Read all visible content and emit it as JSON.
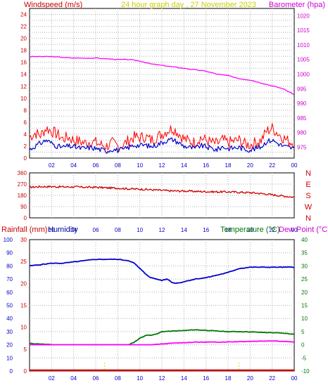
{
  "chart_data": [
    {
      "type": "line",
      "title": "24 hour graph day , 27 November 2023",
      "left_axis_label": "Windspeed (m/s)",
      "right_axis_label": "Barometer (hpa)",
      "x_ticks": [
        "02",
        "04",
        "06",
        "08",
        "10",
        "12",
        "14",
        "16",
        "18",
        "20",
        "22",
        "00"
      ],
      "y_left_ticks": [
        "0",
        "2",
        "4",
        "6",
        "8",
        "10",
        "12",
        "14",
        "16",
        "18",
        "20",
        "22",
        "24"
      ],
      "y_right_ticks": [
        "975",
        "980",
        "985",
        "990",
        "995",
        "1000",
        "1005",
        "1010",
        "1015",
        "1020"
      ],
      "y_left_range": [
        0,
        25
      ],
      "y_right_range": [
        971.25,
        1022.5
      ],
      "x_range": [
        0,
        24
      ],
      "series": [
        {
          "color": "#ff0000",
          "axis": "left",
          "x": [
            0,
            0.5,
            1,
            1.5,
            2,
            2.5,
            3,
            3.5,
            4,
            4.5,
            5,
            5.5,
            6,
            6.5,
            7,
            7.5,
            8,
            8.5,
            9,
            9.5,
            10,
            10.5,
            11,
            11.5,
            12,
            12.5,
            13,
            13.5,
            14,
            14.5,
            15,
            15.5,
            16,
            16.5,
            17,
            17.5,
            18,
            18.5,
            19,
            19.5,
            20,
            20.5,
            21,
            21.5,
            22,
            22.5,
            23,
            23.5,
            24
          ],
          "y": [
            3.5,
            4.2,
            3.8,
            5,
            4.5,
            4,
            3.2,
            3.5,
            3,
            2.8,
            2.5,
            2.8,
            2.6,
            2.2,
            2,
            2.5,
            2,
            2.2,
            3,
            3.5,
            3.4,
            3.6,
            3,
            3.5,
            4,
            4.6,
            5,
            4.2,
            3.2,
            2.8,
            2.6,
            3.4,
            3,
            2.6,
            2.4,
            3,
            2.6,
            2.8,
            3,
            2.4,
            2.2,
            2.6,
            3,
            4.5,
            5,
            4.2,
            3.4,
            2.8,
            2.6
          ]
        },
        {
          "color": "#0000cc",
          "axis": "left",
          "x": [
            0,
            0.5,
            1,
            1.5,
            2,
            2.5,
            3,
            3.5,
            4,
            4.5,
            5,
            5.5,
            6,
            6.5,
            7,
            7.5,
            8,
            8.5,
            9,
            9.5,
            10,
            10.5,
            11,
            11.5,
            12,
            12.5,
            13,
            13.5,
            14,
            14.5,
            15,
            15.5,
            16,
            16.5,
            17,
            17.5,
            18,
            18.5,
            19,
            19.5,
            20,
            20.5,
            21,
            21.5,
            22,
            22.5,
            23,
            23.5,
            24
          ],
          "y": [
            1.4,
            2,
            2.5,
            3,
            2.5,
            2,
            1.8,
            2,
            1.9,
            1.7,
            1.6,
            1.8,
            1.6,
            1.4,
            1.2,
            1.5,
            1.3,
            1.4,
            1.8,
            2.2,
            2.1,
            2.2,
            1.9,
            2.2,
            2.6,
            3,
            3.1,
            2.6,
            2,
            1.8,
            1.6,
            2.1,
            1.9,
            1.6,
            1.4,
            1.9,
            1.6,
            1.7,
            1.8,
            1.5,
            1.4,
            1.6,
            1.9,
            2.8,
            3,
            2.5,
            2,
            1.8,
            1.6
          ]
        },
        {
          "color": "#ff00ff",
          "axis": "right",
          "x": [
            0,
            2,
            4,
            6,
            8,
            9,
            10,
            11,
            12,
            13,
            14,
            15,
            16,
            17,
            18,
            19,
            20,
            21,
            22,
            23,
            24
          ],
          "y": [
            1006,
            1006,
            1005.5,
            1005.5,
            1005,
            1005,
            1004.5,
            1003.5,
            1003,
            1002.5,
            1002,
            1001.5,
            1001,
            1000,
            999.5,
            998.5,
            998,
            997,
            996,
            995,
            993
          ]
        }
      ]
    },
    {
      "type": "line",
      "x_ticks": [
        "02",
        "04",
        "06",
        "08",
        "10",
        "12",
        "14",
        "16",
        "18",
        "20",
        "22",
        "00"
      ],
      "y_left_ticks": [
        "0",
        "90",
        "180",
        "270",
        "360"
      ],
      "y_right_ticks": [
        "N",
        "E",
        "S",
        "W",
        "N"
      ],
      "y_range": [
        0,
        360
      ],
      "x_range": [
        0,
        24
      ],
      "series": [
        {
          "color": "#cc0000",
          "x": [
            0,
            1,
            2,
            3,
            4,
            5,
            6,
            7,
            8,
            9,
            10,
            11,
            12,
            13,
            14,
            15,
            16,
            17,
            18,
            19,
            20,
            21,
            22,
            23,
            24
          ],
          "y": [
            245,
            250,
            250,
            248,
            248,
            245,
            245,
            240,
            238,
            232,
            230,
            225,
            220,
            215,
            215,
            212,
            210,
            208,
            208,
            205,
            202,
            195,
            185,
            175,
            165
          ]
        }
      ]
    },
    {
      "type": "line",
      "rainfall_label": "Rainfall (mm)",
      "humidity_label": "Humidity",
      "temperature_label": "Temperature (°C)",
      "dewpoint_label": "Dew Point (°C)",
      "x_ticks": [
        "02",
        "04",
        "06",
        "08",
        "10",
        "12",
        "14",
        "16",
        "18",
        "20",
        "22",
        "00"
      ],
      "y_humidity_ticks": [
        "0",
        "10",
        "20",
        "30",
        "40",
        "50",
        "60",
        "70",
        "80",
        "90",
        "100"
      ],
      "y_rain_ticks": [
        "0",
        "5",
        "10",
        "15",
        "20",
        "25",
        "30"
      ],
      "y_temp_ticks": [
        "-10",
        "-5",
        "0",
        "5",
        "10",
        "15",
        "20",
        "25",
        "30",
        "35",
        "40"
      ],
      "humidity_range": [
        0,
        100
      ],
      "rain_range": [
        0,
        30
      ],
      "temp_range": [
        -10,
        40
      ],
      "x_range": [
        0,
        24
      ],
      "series": [
        {
          "color": "#0000cc",
          "axis": "humidity",
          "x": [
            0,
            1,
            2,
            3,
            4,
            5,
            6,
            7,
            8,
            9,
            9.5,
            10,
            10.5,
            11,
            11.5,
            12,
            12.5,
            13,
            13.5,
            14,
            15,
            16,
            17,
            18,
            19,
            20,
            21,
            22,
            23,
            24
          ],
          "y": [
            80,
            81,
            82,
            82,
            83,
            84,
            85,
            85,
            85,
            84,
            82,
            78,
            74,
            71,
            70,
            69,
            70,
            67,
            67,
            68,
            70,
            71,
            73,
            75,
            78,
            79,
            79,
            79,
            79,
            79
          ]
        },
        {
          "color": "#007700",
          "axis": "temp",
          "x": [
            0,
            1,
            2,
            3,
            4,
            5,
            6,
            7,
            8,
            9,
            9.5,
            10,
            10.5,
            11,
            11.5,
            12,
            12.5,
            13,
            14,
            15,
            16,
            17,
            18,
            19,
            20,
            21,
            22,
            23,
            24
          ],
          "y": [
            0.5,
            0.3,
            0,
            -0.3,
            -0.7,
            -1,
            -1,
            -0.9,
            -0.6,
            0,
            1,
            2.5,
            3.5,
            3.7,
            4,
            5,
            5.1,
            5.2,
            5.4,
            5.7,
            5.5,
            5.2,
            5,
            5,
            4.9,
            4.7,
            4.6,
            4.4,
            4
          ]
        },
        {
          "color": "#ff00ff",
          "axis": "temp",
          "x": [
            0,
            1,
            2,
            3,
            4,
            5,
            6,
            7,
            8,
            9,
            10,
            10.5,
            11,
            12,
            13,
            14,
            15,
            16,
            17,
            18,
            19,
            20,
            21,
            22,
            23,
            24
          ],
          "y": [
            -1.5,
            -1.7,
            -2,
            -2.3,
            -2.7,
            -3,
            -3,
            -2.7,
            -2.5,
            -2,
            -1.2,
            -0.5,
            0,
            0.3,
            0.6,
            0.8,
            1,
            1,
            1,
            1.1,
            1.2,
            1.3,
            1.4,
            1.5,
            1.3,
            1
          ]
        },
        {
          "color": "#cc0000",
          "axis": "rain",
          "x": [
            0,
            24
          ],
          "y": [
            0,
            0
          ]
        }
      ]
    }
  ]
}
